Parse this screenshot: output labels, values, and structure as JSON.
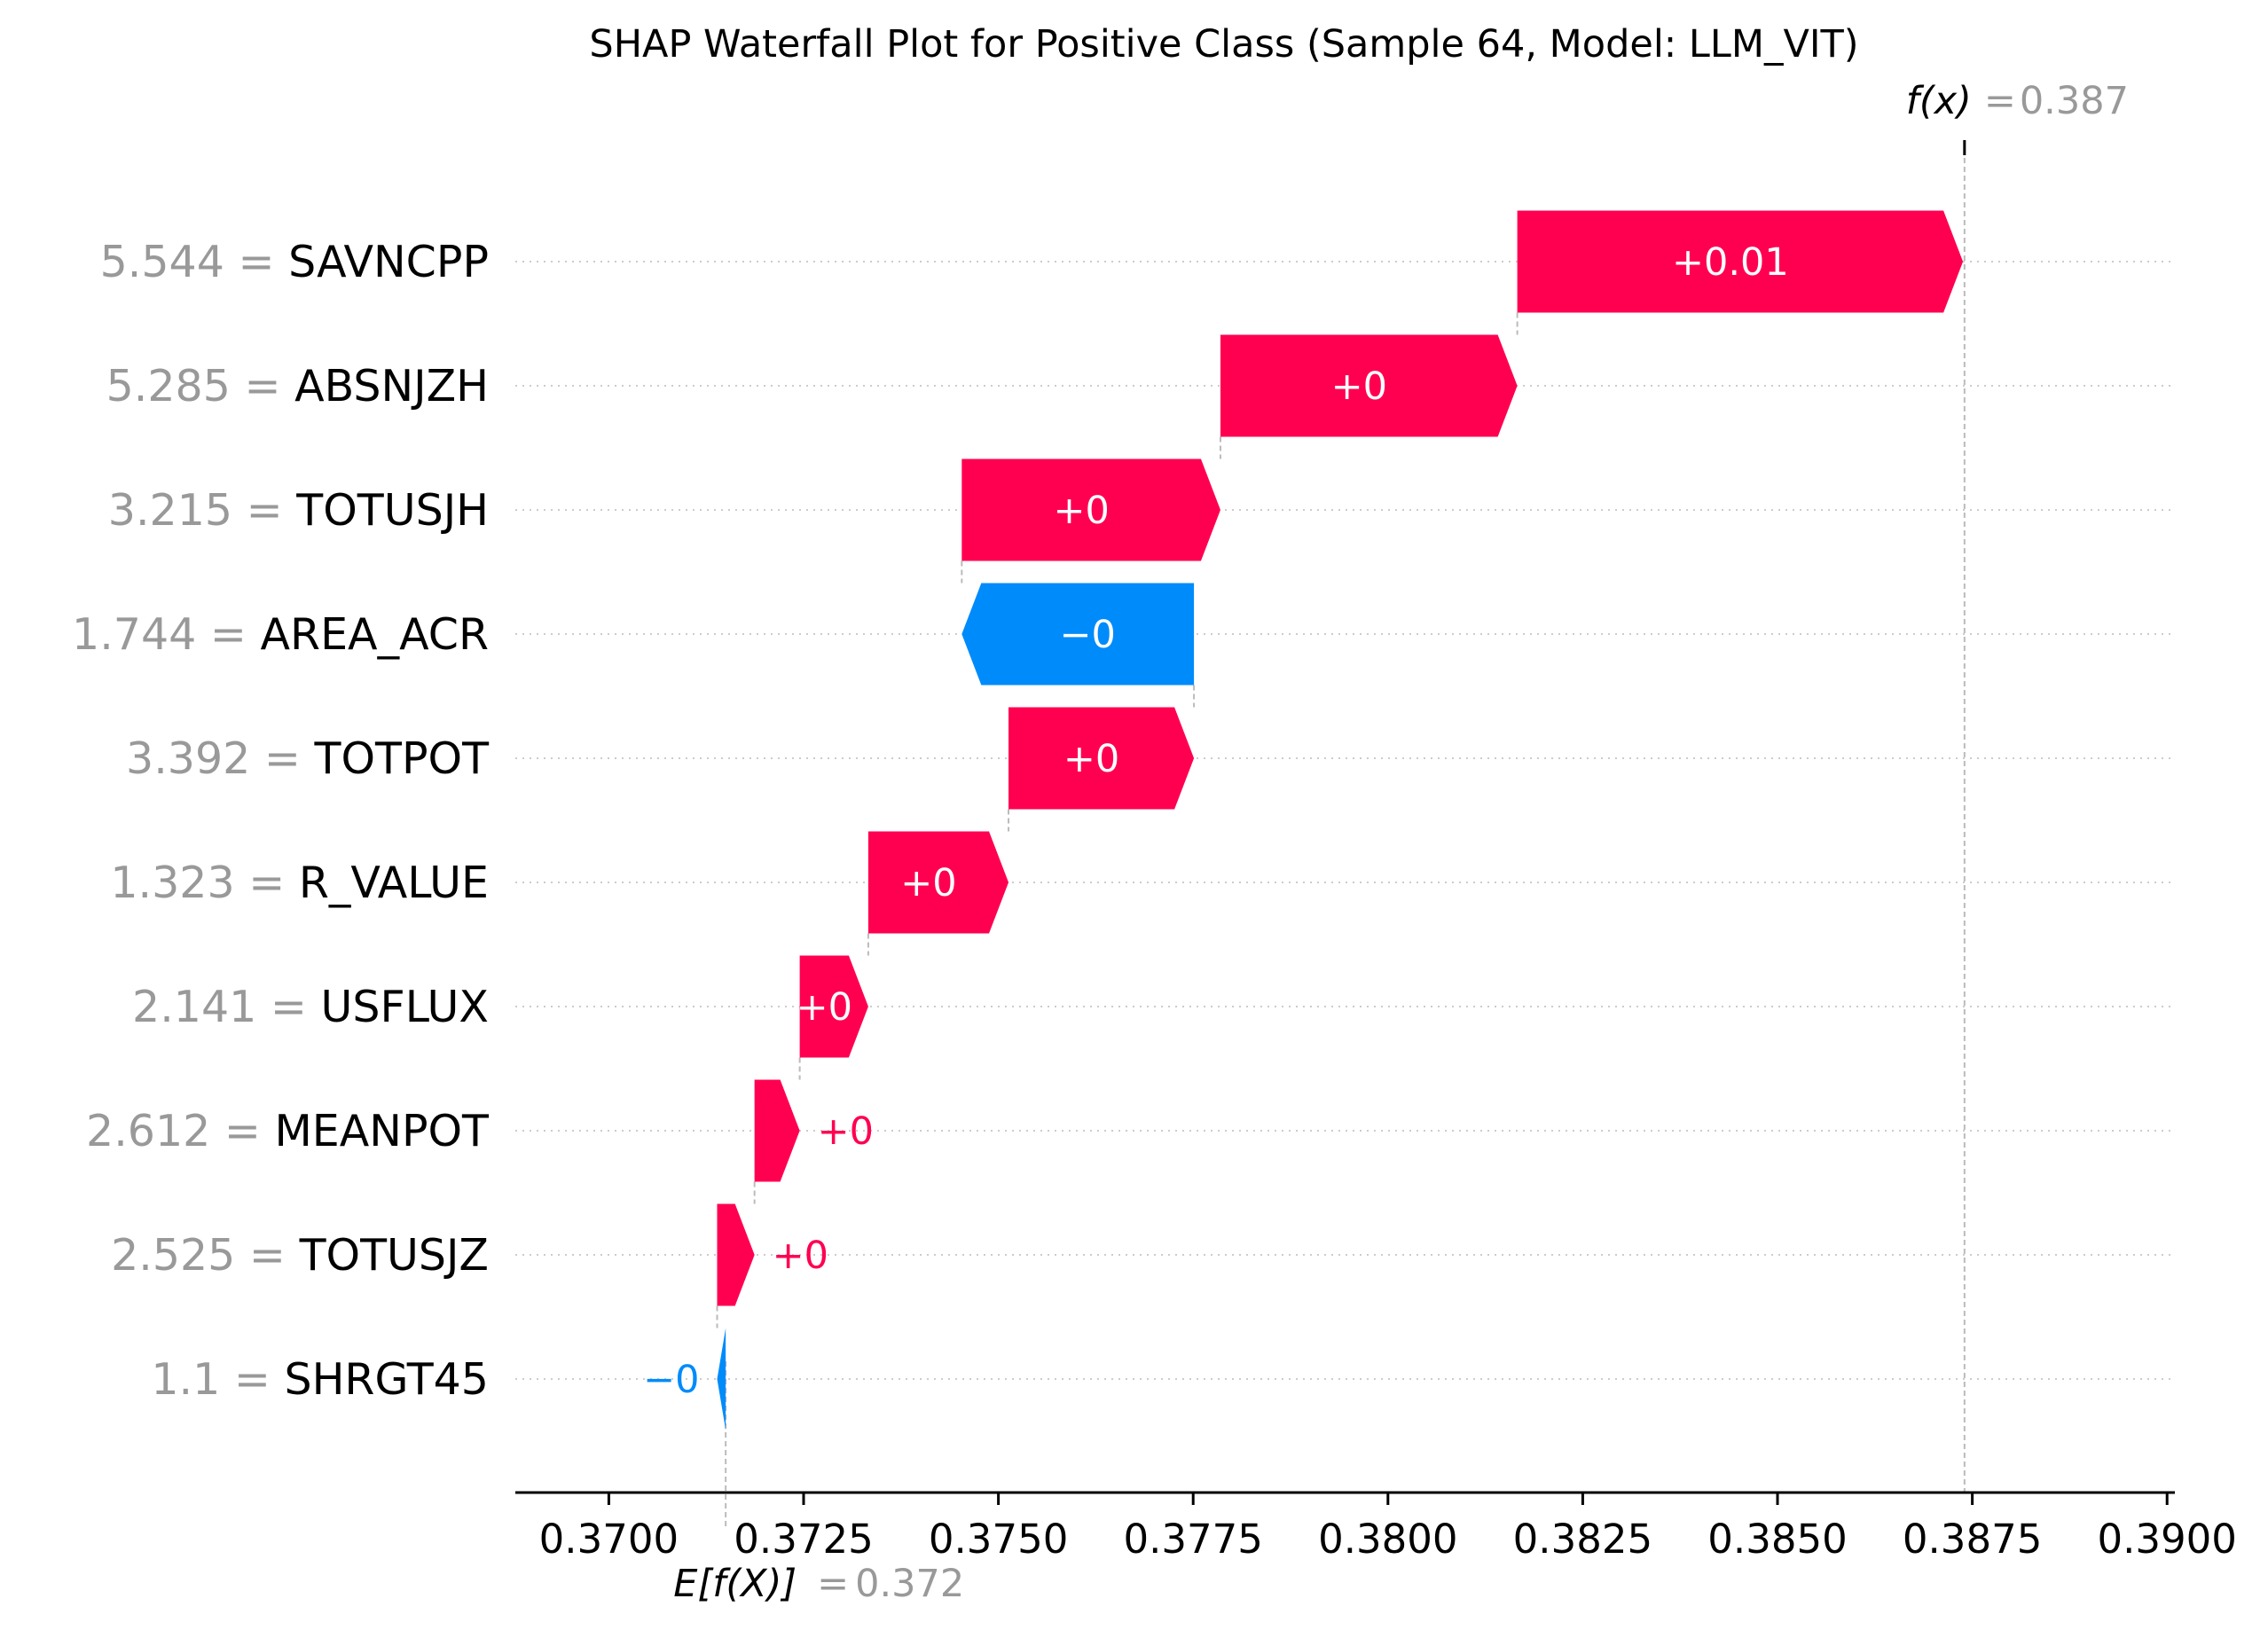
{
  "chart_data": {
    "type": "bar",
    "subtype": "waterfall",
    "title": "SHAP Waterfall Plot for Positive Class (Sample 64, Model: LLM_VIT)",
    "fx_label": "f(x)",
    "fx_value": "0.387",
    "fx_numeric": 0.3874,
    "ex_label": "E[f(X)]",
    "ex_value": "0.372",
    "ex_numeric": 0.3715,
    "xlim": [
      0.3688,
      0.3901
    ],
    "xticks": [
      0.37,
      0.3725,
      0.375,
      0.3775,
      0.38,
      0.3825,
      0.385,
      0.3875,
      0.39
    ],
    "xtick_labels": [
      "0.3700",
      "0.3725",
      "0.3750",
      "0.3775",
      "0.3800",
      "0.3825",
      "0.3850",
      "0.3875",
      "0.3900"
    ],
    "features": [
      {
        "value": "5.544",
        "name": "SAVNCPP",
        "start": 0.38166,
        "end": 0.38738,
        "label": "+0.01",
        "sign": "pos",
        "label_inside": true
      },
      {
        "value": "5.285",
        "name": "ABSNJZH",
        "start": 0.37785,
        "end": 0.38166,
        "label": "+0",
        "sign": "pos",
        "label_inside": true
      },
      {
        "value": "3.215",
        "name": "TOTUSJH",
        "start": 0.37453,
        "end": 0.37785,
        "label": "+0",
        "sign": "pos",
        "label_inside": true
      },
      {
        "value": "1.744",
        "name": "AREA_ACR",
        "start": 0.37751,
        "end": 0.37453,
        "label": "−0",
        "sign": "neg",
        "label_inside": true
      },
      {
        "value": "3.392",
        "name": "TOTPOT",
        "start": 0.37513,
        "end": 0.37751,
        "label": "+0",
        "sign": "pos",
        "label_inside": true
      },
      {
        "value": "1.323",
        "name": "R_VALUE",
        "start": 0.37333,
        "end": 0.37513,
        "label": "+0",
        "sign": "pos",
        "label_inside": true
      },
      {
        "value": "2.141",
        "name": "USFLUX",
        "start": 0.37245,
        "end": 0.37333,
        "label": "+0",
        "sign": "pos",
        "label_inside": true
      },
      {
        "value": "2.612",
        "name": "MEANPOT",
        "start": 0.37187,
        "end": 0.37245,
        "label": "+0",
        "sign": "pos",
        "label_inside": false
      },
      {
        "value": "2.525",
        "name": "TOTUSJZ",
        "start": 0.37139,
        "end": 0.37187,
        "label": "+0",
        "sign": "pos",
        "label_inside": false
      },
      {
        "value": "1.1",
        "name": "SHRGT45",
        "start": 0.3715,
        "end": 0.37139,
        "label": "−0",
        "sign": "neg",
        "label_inside": false
      }
    ],
    "colors": {
      "positive": "#ff0051",
      "negative": "#008bfb",
      "feature_value": "#999999",
      "feature_name": "#000000",
      "gridline": "#cccccc",
      "guide": "#bbbbbb",
      "axis": "#000000"
    },
    "grid": true
  }
}
